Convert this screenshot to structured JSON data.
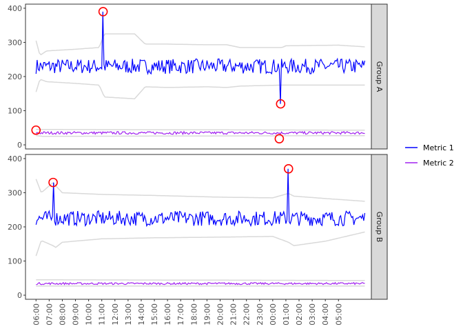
{
  "chart_data": {
    "type": "line",
    "title": "",
    "xlabel": "",
    "ylabel": "",
    "x_tick_labels": [
      "06:00",
      "07:00",
      "08:00",
      "09:00",
      "10:00",
      "11:00",
      "12:00",
      "13:00",
      "14:00",
      "15:00",
      "16:00",
      "17:00",
      "18:00",
      "19:00",
      "20:00",
      "21:00",
      "22:00",
      "23:00",
      "00:00",
      "01:00",
      "02:00",
      "03:00",
      "04:00",
      "05:00"
    ],
    "x_range_hours": [
      -0.8,
      25.5
    ],
    "ylim": [
      -12,
      412
    ],
    "y_ticks": [
      0,
      100,
      200,
      300,
      400
    ],
    "grid": false,
    "legend_position": "right",
    "colors": {
      "Metric 1": "#0000ff",
      "Metric 2": "#a020f0",
      "band": "#d9d9d9",
      "anomaly": "#ff0000",
      "strip_fill": "#d9d9d9"
    },
    "legend": [
      {
        "name": "Metric 1",
        "color": "#0000ff"
      },
      {
        "name": "Metric 2",
        "color": "#a020f0"
      }
    ],
    "facets": [
      {
        "label": "Group A",
        "series": [
          {
            "name": "Metric 1",
            "baseline": 230,
            "amplitude": 22,
            "spikes": [
              {
                "hour": 5.1,
                "value": 390
              },
              {
                "hour": 18.6,
                "value": 120
              }
            ]
          },
          {
            "name": "Metric 2",
            "baseline": 35,
            "amplitude": 4,
            "spikes": []
          }
        ],
        "band_upper": [
          [
            0,
            305
          ],
          [
            0.3,
            262
          ],
          [
            0.8,
            275
          ],
          [
            3,
            280
          ],
          [
            4.8,
            285
          ],
          [
            5.2,
            325
          ],
          [
            7.5,
            325
          ],
          [
            8.3,
            295
          ],
          [
            10,
            295
          ],
          [
            13,
            293
          ],
          [
            14.5,
            293
          ],
          [
            15.5,
            285
          ],
          [
            18.7,
            285
          ],
          [
            19,
            290
          ],
          [
            23,
            292
          ],
          [
            25,
            287
          ]
        ],
        "band_lower": [
          [
            0,
            155
          ],
          [
            0.3,
            192
          ],
          [
            0.8,
            185
          ],
          [
            3,
            180
          ],
          [
            4.8,
            175
          ],
          [
            5.2,
            140
          ],
          [
            7.5,
            135
          ],
          [
            8.3,
            170
          ],
          [
            10,
            168
          ],
          [
            13,
            170
          ],
          [
            14.5,
            168
          ],
          [
            15.5,
            172
          ],
          [
            18.7,
            175
          ],
          [
            19,
            175
          ],
          [
            23,
            175
          ],
          [
            25,
            175
          ]
        ],
        "band_m2_upper": [
          [
            0,
            45
          ],
          [
            25,
            43
          ]
        ],
        "band_m2_lower": [
          [
            0,
            27
          ],
          [
            0.5,
            25
          ],
          [
            25,
            27
          ]
        ],
        "anomalies": [
          {
            "hour": 5.1,
            "value": 390
          },
          {
            "hour": 18.6,
            "value": 120
          },
          {
            "hour": 0.0,
            "value": 43
          },
          {
            "hour": 18.5,
            "value": 18
          }
        ]
      },
      {
        "label": "Group B",
        "series": [
          {
            "name": "Metric 1",
            "baseline": 225,
            "amplitude": 22,
            "spikes": [
              {
                "hour": 1.3,
                "value": 330
              },
              {
                "hour": 19.2,
                "value": 370
              }
            ]
          },
          {
            "name": "Metric 2",
            "baseline": 34,
            "amplitude": 3,
            "spikes": []
          }
        ],
        "band_upper": [
          [
            0,
            340
          ],
          [
            0.4,
            300
          ],
          [
            1.3,
            330
          ],
          [
            1.5,
            320
          ],
          [
            2,
            300
          ],
          [
            5,
            295
          ],
          [
            9,
            292
          ],
          [
            14,
            287
          ],
          [
            18,
            285
          ],
          [
            19.2,
            298
          ],
          [
            19.6,
            290
          ],
          [
            22,
            283
          ],
          [
            25,
            275
          ]
        ],
        "band_lower": [
          [
            0,
            115
          ],
          [
            0.4,
            160
          ],
          [
            1.3,
            145
          ],
          [
            1.5,
            140
          ],
          [
            2,
            155
          ],
          [
            5,
            165
          ],
          [
            9,
            168
          ],
          [
            14,
            170
          ],
          [
            18,
            172
          ],
          [
            19.2,
            155
          ],
          [
            19.6,
            145
          ],
          [
            22,
            158
          ],
          [
            25,
            185
          ]
        ],
        "band_m2_upper": [
          [
            0,
            45
          ],
          [
            25,
            43
          ]
        ],
        "band_m2_lower": [
          [
            0,
            27
          ],
          [
            25,
            27
          ]
        ],
        "anomalies": [
          {
            "hour": 1.3,
            "value": 330
          },
          {
            "hour": 19.2,
            "value": 370
          }
        ]
      }
    ]
  }
}
